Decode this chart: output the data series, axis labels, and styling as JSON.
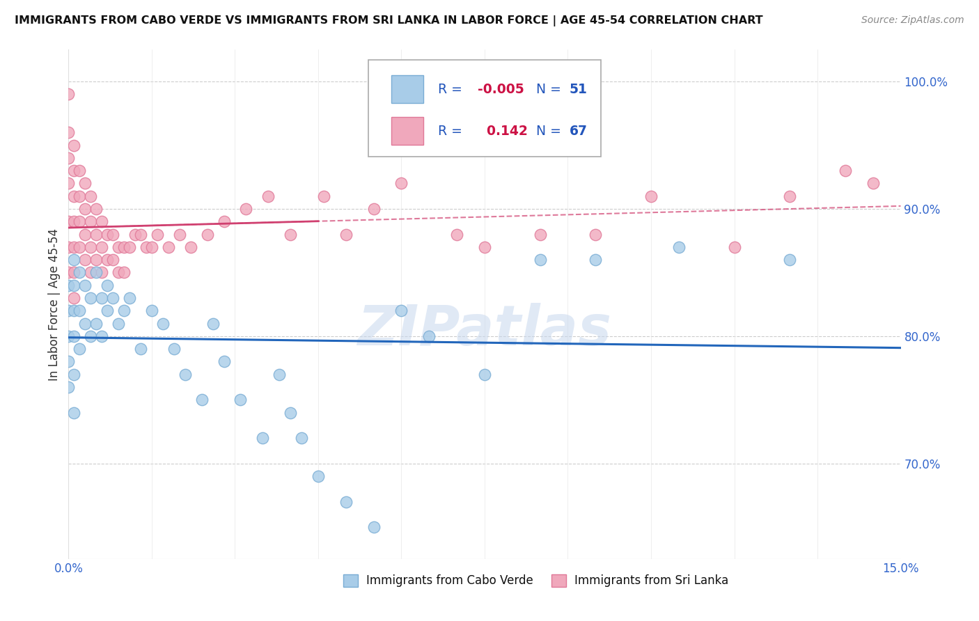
{
  "title": "IMMIGRANTS FROM CABO VERDE VS IMMIGRANTS FROM SRI LANKA IN LABOR FORCE | AGE 45-54 CORRELATION CHART",
  "source": "Source: ZipAtlas.com",
  "ylabel": "In Labor Force | Age 45-54",
  "xlim": [
    0.0,
    0.15
  ],
  "ylim": [
    0.625,
    1.025
  ],
  "xticks": [
    0.0,
    0.15
  ],
  "xtick_labels": [
    "0.0%",
    "15.0%"
  ],
  "ytick_labels": [
    "70.0%",
    "80.0%",
    "90.0%",
    "100.0%"
  ],
  "yticks": [
    0.7,
    0.8,
    0.9,
    1.0
  ],
  "cabo_verde_color": "#a8cce8",
  "cabo_verde_edge": "#7aadd4",
  "sri_lanka_color": "#f0a8bc",
  "sri_lanka_edge": "#e07898",
  "trend_cabo_color": "#2266bb",
  "trend_sri_color": "#d04070",
  "legend_cabo_label": "Immigrants from Cabo Verde",
  "legend_sri_label": "Immigrants from Sri Lanka",
  "R_cabo": -0.005,
  "N_cabo": 51,
  "R_sri": 0.142,
  "N_sri": 67,
  "watermark": "ZIPatlas",
  "cabo_verde_x": [
    0.0,
    0.0,
    0.0,
    0.0,
    0.0,
    0.001,
    0.001,
    0.001,
    0.001,
    0.001,
    0.001,
    0.002,
    0.002,
    0.002,
    0.003,
    0.003,
    0.004,
    0.004,
    0.005,
    0.005,
    0.006,
    0.006,
    0.007,
    0.007,
    0.008,
    0.009,
    0.01,
    0.011,
    0.013,
    0.015,
    0.017,
    0.019,
    0.021,
    0.024,
    0.026,
    0.028,
    0.031,
    0.035,
    0.038,
    0.04,
    0.042,
    0.045,
    0.05,
    0.055,
    0.06,
    0.065,
    0.075,
    0.085,
    0.095,
    0.11,
    0.13
  ],
  "cabo_verde_y": [
    0.84,
    0.82,
    0.8,
    0.78,
    0.76,
    0.86,
    0.84,
    0.82,
    0.8,
    0.77,
    0.74,
    0.85,
    0.82,
    0.79,
    0.84,
    0.81,
    0.83,
    0.8,
    0.85,
    0.81,
    0.83,
    0.8,
    0.84,
    0.82,
    0.83,
    0.81,
    0.82,
    0.83,
    0.79,
    0.82,
    0.81,
    0.79,
    0.77,
    0.75,
    0.81,
    0.78,
    0.75,
    0.72,
    0.77,
    0.74,
    0.72,
    0.69,
    0.67,
    0.65,
    0.82,
    0.8,
    0.77,
    0.86,
    0.86,
    0.87,
    0.86
  ],
  "sri_lanka_x": [
    0.0,
    0.0,
    0.0,
    0.0,
    0.0,
    0.0,
    0.0,
    0.001,
    0.001,
    0.001,
    0.001,
    0.001,
    0.001,
    0.001,
    0.002,
    0.002,
    0.002,
    0.002,
    0.003,
    0.003,
    0.003,
    0.003,
    0.004,
    0.004,
    0.004,
    0.004,
    0.005,
    0.005,
    0.005,
    0.006,
    0.006,
    0.006,
    0.007,
    0.007,
    0.008,
    0.008,
    0.009,
    0.009,
    0.01,
    0.01,
    0.011,
    0.012,
    0.013,
    0.014,
    0.015,
    0.016,
    0.018,
    0.02,
    0.022,
    0.025,
    0.028,
    0.032,
    0.036,
    0.04,
    0.046,
    0.05,
    0.055,
    0.06,
    0.07,
    0.075,
    0.085,
    0.095,
    0.105,
    0.12,
    0.13,
    0.14,
    0.145
  ],
  "sri_lanka_y": [
    0.99,
    0.96,
    0.94,
    0.92,
    0.89,
    0.87,
    0.85,
    0.95,
    0.93,
    0.91,
    0.89,
    0.87,
    0.85,
    0.83,
    0.93,
    0.91,
    0.89,
    0.87,
    0.92,
    0.9,
    0.88,
    0.86,
    0.91,
    0.89,
    0.87,
    0.85,
    0.9,
    0.88,
    0.86,
    0.89,
    0.87,
    0.85,
    0.88,
    0.86,
    0.88,
    0.86,
    0.87,
    0.85,
    0.87,
    0.85,
    0.87,
    0.88,
    0.88,
    0.87,
    0.87,
    0.88,
    0.87,
    0.88,
    0.87,
    0.88,
    0.89,
    0.9,
    0.91,
    0.88,
    0.91,
    0.88,
    0.9,
    0.92,
    0.88,
    0.87,
    0.88,
    0.88,
    0.91,
    0.87,
    0.91,
    0.93,
    0.92
  ]
}
